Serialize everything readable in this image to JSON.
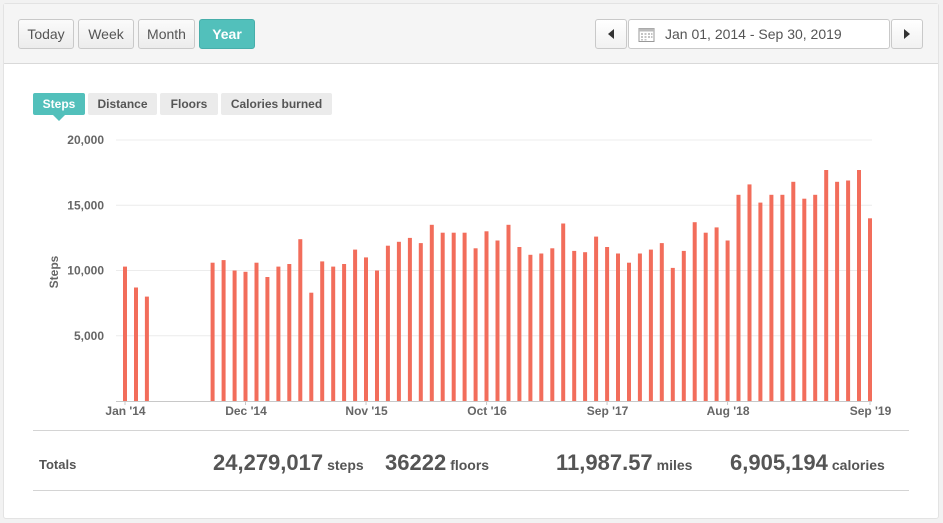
{
  "toolbar": {
    "range_buttons": [
      "Today",
      "Week",
      "Month",
      "Year"
    ],
    "active_range": "Year",
    "date_range": "Jan 01, 2014 - Sep 30, 2019"
  },
  "tabs": {
    "items": [
      "Steps",
      "Distance",
      "Floors",
      "Calories burned"
    ],
    "active": "Steps"
  },
  "colors": {
    "accent": "#52c0bb",
    "bar": "#f26d5b"
  },
  "chart_data": {
    "type": "bar",
    "ylabel": "Steps",
    "ylim": [
      0,
      20000
    ],
    "yticks": [
      5000,
      10000,
      15000,
      20000
    ],
    "ytick_labels": [
      "5,000",
      "10,000",
      "15,000",
      "20,000"
    ],
    "x_labels": [
      "Jan '14",
      "Dec '14",
      "Nov '15",
      "Oct '16",
      "Sep '17",
      "Aug '18",
      "Sep '19"
    ],
    "x_label_months": [
      0,
      11,
      22,
      33,
      44,
      55,
      68
    ],
    "x_range_months": [
      0,
      68
    ],
    "series": [
      {
        "months": [
          0,
          1,
          2,
          8,
          9,
          10,
          11,
          12,
          13,
          14,
          15,
          16,
          17,
          18,
          19,
          20,
          21,
          22,
          23,
          24,
          25,
          26,
          27,
          28,
          29,
          30,
          31,
          32,
          33,
          34,
          35,
          36,
          37,
          38,
          39,
          40,
          41,
          42,
          43,
          44,
          45,
          46,
          47,
          48,
          49,
          50,
          51,
          52,
          53,
          54,
          55,
          56,
          57,
          58,
          59,
          60,
          61,
          62,
          63,
          64,
          65,
          66,
          67,
          68
        ],
        "values": [
          10300,
          8700,
          8000,
          10600,
          10800,
          10000,
          9900,
          10600,
          9500,
          10300,
          10500,
          12400,
          8300,
          10700,
          10300,
          10500,
          11600,
          11000,
          10000,
          11900,
          12200,
          12500,
          12100,
          13500,
          12900,
          12900,
          12900,
          11700,
          13000,
          12300,
          13500,
          11800,
          11200,
          11300,
          11700,
          13600,
          11500,
          11400,
          12600,
          11800,
          11300,
          10600,
          11300,
          11600,
          12100,
          10200,
          11500,
          13700,
          12900,
          13300,
          12300,
          15800,
          16600,
          15200,
          15800,
          15800,
          16800,
          15500,
          15800,
          17700,
          16800,
          16900,
          17700,
          14000
        ]
      }
    ]
  },
  "totals": {
    "label": "Totals",
    "items": [
      {
        "value": "24,279,017",
        "unit": "steps"
      },
      {
        "value": "36222",
        "unit": "floors"
      },
      {
        "value": "11,987.57",
        "unit": "miles"
      },
      {
        "value": "6,905,194",
        "unit": "calories"
      }
    ]
  }
}
